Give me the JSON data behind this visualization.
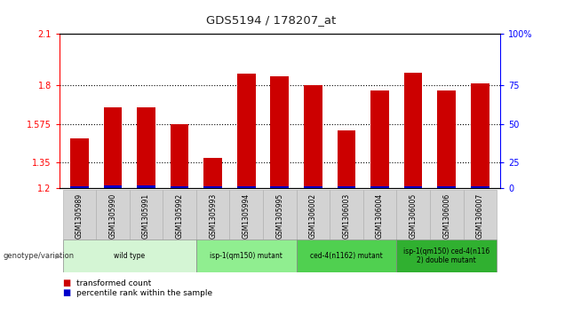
{
  "title": "GDS5194 / 178207_at",
  "samples": [
    "GSM1305989",
    "GSM1305990",
    "GSM1305991",
    "GSM1305992",
    "GSM1305993",
    "GSM1305994",
    "GSM1305995",
    "GSM1306002",
    "GSM1306003",
    "GSM1306004",
    "GSM1306005",
    "GSM1306006",
    "GSM1306007"
  ],
  "red_values": [
    1.49,
    1.67,
    1.67,
    1.575,
    1.375,
    1.87,
    1.855,
    1.8,
    1.535,
    1.77,
    1.875,
    1.77,
    1.81
  ],
  "blue_values": [
    0.012,
    0.018,
    0.016,
    0.014,
    0.012,
    0.014,
    0.014,
    0.014,
    0.014,
    0.014,
    0.014,
    0.014,
    0.014
  ],
  "y_min": 1.2,
  "y_max": 2.1,
  "y_ticks_left": [
    1.2,
    1.35,
    1.575,
    1.8,
    2.1
  ],
  "y_ticks_right_vals": [
    0,
    25,
    50,
    75,
    100
  ],
  "y_ticks_right_pos": [
    1.2,
    1.35,
    1.575,
    1.8,
    2.1
  ],
  "groups": [
    {
      "label": "wild type",
      "indices": [
        0,
        1,
        2,
        3
      ],
      "color": "#d4f5d4"
    },
    {
      "label": "isp-1(qm150) mutant",
      "indices": [
        4,
        5,
        6
      ],
      "color": "#90ee90"
    },
    {
      "label": "ced-4(n1162) mutant",
      "indices": [
        7,
        8,
        9
      ],
      "color": "#50d050"
    },
    {
      "label": "isp-1(qm150) ced-4(n116\n2) double mutant",
      "indices": [
        10,
        11,
        12
      ],
      "color": "#30b030"
    }
  ],
  "bar_width": 0.55,
  "red_color": "#cc0000",
  "blue_color": "#0000cc",
  "bg_color": "#ffffff",
  "label_area_color": "#d3d3d3"
}
